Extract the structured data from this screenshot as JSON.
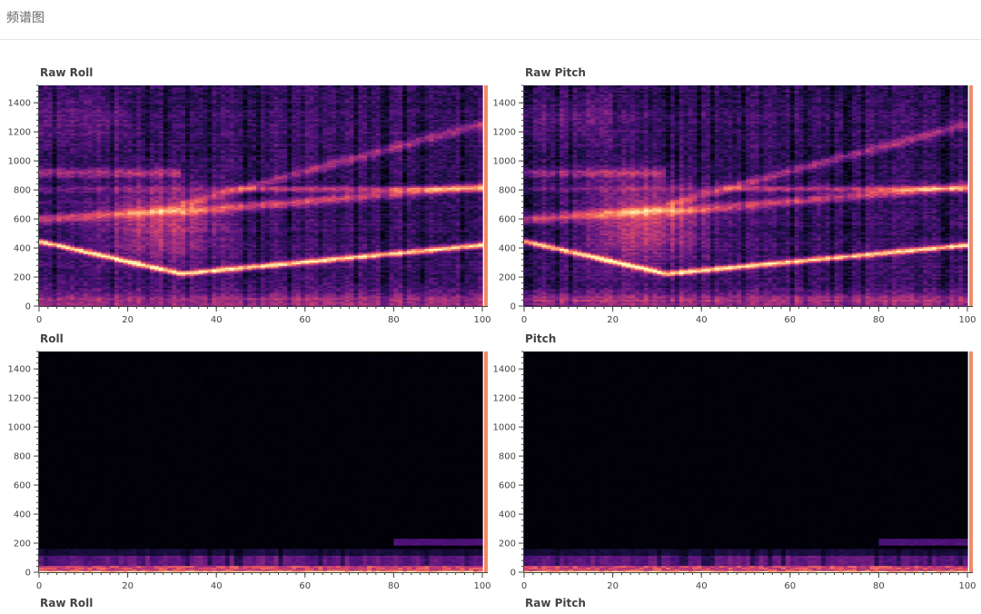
{
  "page": {
    "title": "频谱图"
  },
  "chart_data": [
    {
      "type": "heatmap",
      "title": "Raw Roll",
      "variant": "raw",
      "seed": 11,
      "xlim": [
        0,
        100
      ],
      "ylim": [
        0,
        1520
      ],
      "xticks": [
        0,
        20,
        40,
        60,
        80,
        100
      ],
      "yticks": [
        0,
        200,
        400,
        600,
        800,
        1000,
        1200,
        1400
      ],
      "colormap": "magma",
      "colorbar_color": "#f28a68"
    },
    {
      "type": "heatmap",
      "title": "Raw Pitch",
      "variant": "raw",
      "seed": 23,
      "xlim": [
        0,
        100
      ],
      "ylim": [
        0,
        1520
      ],
      "xticks": [
        0,
        20,
        40,
        60,
        80,
        100
      ],
      "yticks": [
        0,
        200,
        400,
        600,
        800,
        1000,
        1200,
        1400
      ],
      "colormap": "magma",
      "colorbar_color": "#f28a68"
    },
    {
      "type": "heatmap",
      "title": "Roll",
      "variant": "filtered",
      "seed": 37,
      "xlim": [
        0,
        100
      ],
      "ylim": [
        0,
        1520
      ],
      "xticks": [
        0,
        20,
        40,
        60,
        80,
        100
      ],
      "yticks": [
        0,
        200,
        400,
        600,
        800,
        1000,
        1200,
        1400
      ],
      "colormap": "magma",
      "colorbar_color": "#f28a68"
    },
    {
      "type": "heatmap",
      "title": "Pitch",
      "variant": "filtered",
      "seed": 51,
      "xlim": [
        0,
        100
      ],
      "ylim": [
        0,
        1520
      ],
      "xticks": [
        0,
        20,
        40,
        60,
        80,
        100
      ],
      "yticks": [
        0,
        200,
        400,
        600,
        800,
        1000,
        1200,
        1400
      ],
      "colormap": "magma",
      "colorbar_color": "#f28a68"
    },
    {
      "type": "heatmap",
      "title": "Raw Roll"
    },
    {
      "type": "heatmap",
      "title": "Raw Pitch"
    }
  ]
}
